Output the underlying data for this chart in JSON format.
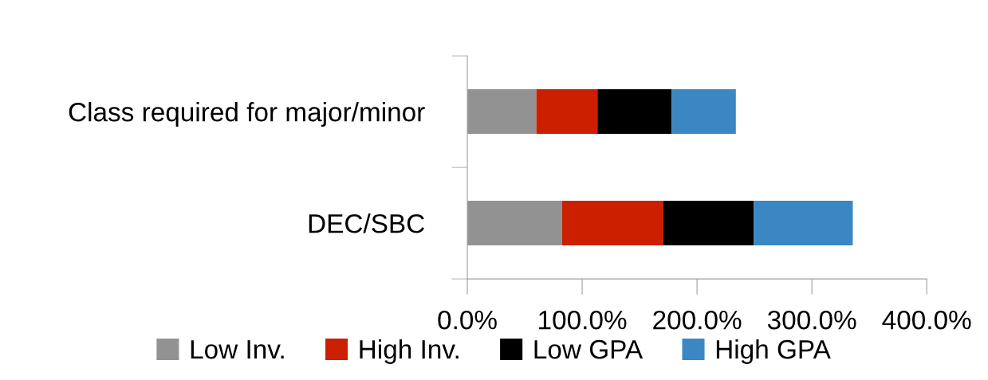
{
  "chart_data": {
    "type": "bar",
    "orientation": "horizontal",
    "stacked": true,
    "categories": [
      "Class required for major/minor",
      "DEC/SBC"
    ],
    "series": [
      {
        "name": "Low Inv.",
        "color": "#929292",
        "values": [
          60.1,
          82.4
        ]
      },
      {
        "name": "High Inv.",
        "color": "#cc1f00",
        "values": [
          53.2,
          88.3
        ]
      },
      {
        "name": "Low GPA",
        "color": "#000000",
        "values": [
          64.6,
          78.8
        ]
      },
      {
        "name": "High GPA",
        "color": "#3a87c4",
        "values": [
          55.9,
          86.1
        ]
      }
    ],
    "xlim": [
      0,
      400
    ],
    "xticks": [
      {
        "value": 0,
        "label": "0.0%"
      },
      {
        "value": 100,
        "label": "100.0%"
      },
      {
        "value": 200,
        "label": "200.0%"
      },
      {
        "value": 300,
        "label": "300.0%"
      },
      {
        "value": 400,
        "label": "400.0%"
      }
    ],
    "grid": false,
    "legend": "bottom"
  }
}
